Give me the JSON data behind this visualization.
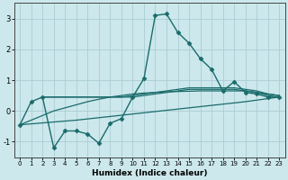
{
  "xlabel": "Humidex (Indice chaleur)",
  "background_color": "#cce8ec",
  "grid_color": "#aacdd4",
  "line_color": "#1a6b6b",
  "xlim": [
    -0.5,
    23.5
  ],
  "ylim": [
    -1.5,
    3.5
  ],
  "yticks": [
    -1,
    0,
    1,
    2,
    3
  ],
  "xticks": [
    0,
    1,
    2,
    3,
    4,
    5,
    6,
    7,
    8,
    9,
    10,
    11,
    12,
    13,
    14,
    15,
    16,
    17,
    18,
    19,
    20,
    21,
    22,
    23
  ],
  "series": [
    {
      "x": [
        0,
        1,
        2,
        3,
        4,
        5,
        6,
        7,
        8,
        9,
        10,
        11,
        12,
        13,
        14,
        15,
        16,
        17,
        18,
        19,
        20,
        21,
        22,
        23
      ],
      "y": [
        -0.45,
        0.3,
        0.45,
        -1.2,
        -0.65,
        -0.65,
        -0.75,
        -1.05,
        -0.4,
        -0.25,
        0.45,
        1.05,
        3.1,
        3.15,
        2.55,
        2.2,
        1.7,
        1.35,
        0.65,
        0.95,
        0.6,
        0.55,
        0.45,
        0.45
      ],
      "linestyle": "-",
      "marker": "D",
      "markersize": 2.5,
      "linewidth": 1.0
    },
    {
      "x": [
        2,
        3,
        4,
        5,
        6,
        7,
        8,
        9,
        10,
        11,
        12,
        13,
        14,
        15,
        16,
        17,
        18,
        19,
        20,
        21,
        22,
        23
      ],
      "y": [
        0.45,
        0.45,
        0.45,
        0.45,
        0.45,
        0.45,
        0.45,
        0.45,
        0.45,
        0.5,
        0.55,
        0.6,
        0.65,
        0.7,
        0.7,
        0.7,
        0.7,
        0.7,
        0.65,
        0.6,
        0.5,
        0.45
      ],
      "linestyle": "-",
      "marker": null,
      "markersize": 0,
      "linewidth": 0.9
    },
    {
      "x": [
        2,
        3,
        4,
        5,
        6,
        7,
        8,
        9,
        10,
        11,
        12,
        13,
        14,
        15,
        16,
        17,
        18,
        19,
        20,
        21,
        22,
        23
      ],
      "y": [
        0.45,
        0.45,
        0.45,
        0.45,
        0.45,
        0.45,
        0.45,
        0.45,
        0.5,
        0.55,
        0.6,
        0.65,
        0.7,
        0.75,
        0.75,
        0.75,
        0.75,
        0.75,
        0.7,
        0.65,
        0.55,
        0.5
      ],
      "linestyle": "-",
      "marker": null,
      "markersize": 0,
      "linewidth": 0.9
    },
    {
      "x": [
        0,
        1,
        2,
        3,
        4,
        5,
        6,
        7,
        8,
        9,
        10,
        11,
        12,
        13,
        14,
        15,
        16,
        17,
        18,
        19,
        20,
        21,
        22,
        23
      ],
      "y": [
        -0.45,
        -0.3,
        -0.15,
        -0.0,
        0.1,
        0.2,
        0.3,
        0.38,
        0.45,
        0.5,
        0.55,
        0.58,
        0.6,
        0.62,
        0.63,
        0.64,
        0.65,
        0.65,
        0.65,
        0.65,
        0.65,
        0.6,
        0.55,
        0.5
      ],
      "linestyle": "-",
      "marker": null,
      "markersize": 0,
      "linewidth": 0.9
    },
    {
      "x": [
        0,
        5,
        10,
        15,
        20,
        23
      ],
      "y": [
        -0.45,
        -0.3,
        -0.1,
        0.1,
        0.3,
        0.45
      ],
      "linestyle": "-",
      "marker": null,
      "markersize": 0,
      "linewidth": 0.9
    }
  ]
}
